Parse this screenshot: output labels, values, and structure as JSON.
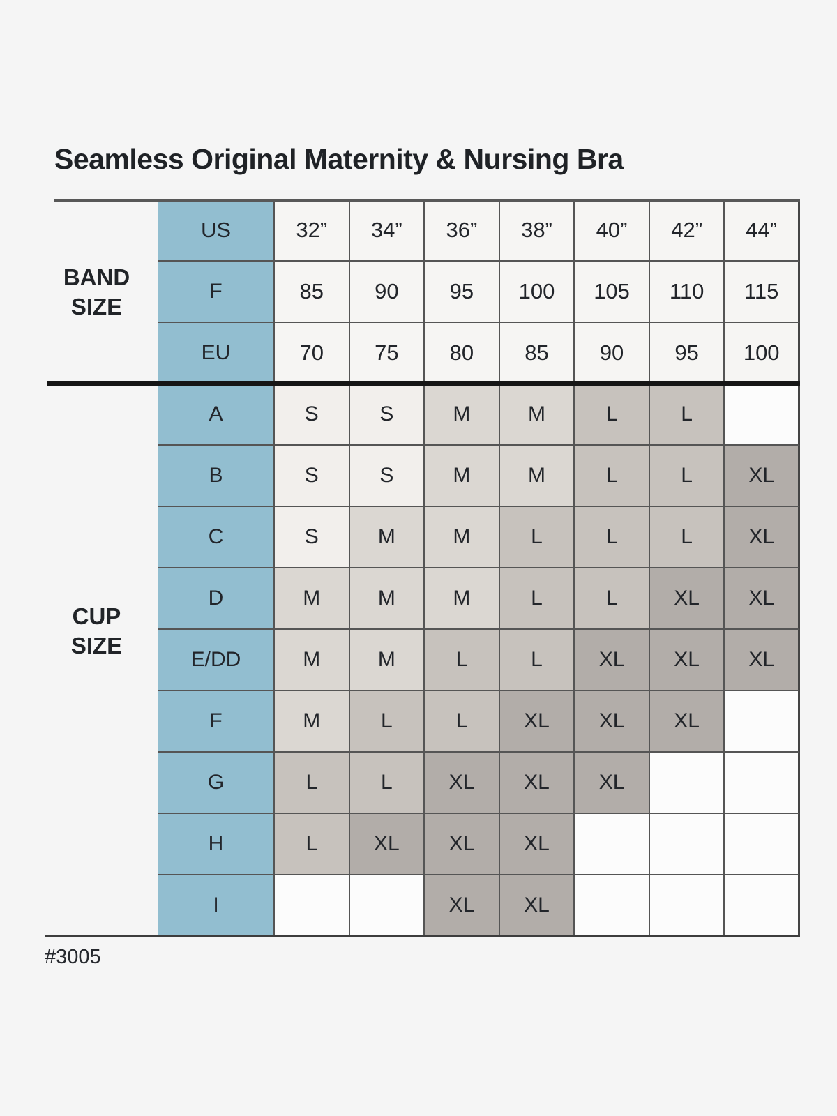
{
  "title": "Seamless Original Maternity & Nursing Bra",
  "product_code": "#3005",
  "table": {
    "band_label_lines": [
      "BAND",
      "SIZE"
    ],
    "cup_label_lines": [
      "CUP",
      "SIZE"
    ],
    "band_rows": [
      {
        "label": "US",
        "values": [
          "32”",
          "34”",
          "36”",
          "38”",
          "40”",
          "42”",
          "44”"
        ]
      },
      {
        "label": "F",
        "values": [
          "85",
          "90",
          "95",
          "100",
          "105",
          "110",
          "115"
        ]
      },
      {
        "label": "EU",
        "values": [
          "70",
          "75",
          "80",
          "85",
          "90",
          "95",
          "100"
        ]
      }
    ],
    "cup_rows": [
      {
        "label": "A",
        "values": [
          "S",
          "S",
          "M",
          "M",
          "L",
          "L",
          ""
        ]
      },
      {
        "label": "B",
        "values": [
          "S",
          "S",
          "M",
          "M",
          "L",
          "L",
          "XL"
        ]
      },
      {
        "label": "C",
        "values": [
          "S",
          "M",
          "M",
          "L",
          "L",
          "L",
          "XL"
        ]
      },
      {
        "label": "D",
        "values": [
          "M",
          "M",
          "M",
          "L",
          "L",
          "XL",
          "XL"
        ]
      },
      {
        "label": "E/DD",
        "values": [
          "M",
          "M",
          "L",
          "L",
          "XL",
          "XL",
          "XL"
        ]
      },
      {
        "label": "F",
        "values": [
          "M",
          "L",
          "L",
          "XL",
          "XL",
          "XL",
          ""
        ]
      },
      {
        "label": "G",
        "values": [
          "L",
          "L",
          "XL",
          "XL",
          "XL",
          "",
          ""
        ]
      },
      {
        "label": "H",
        "values": [
          "L",
          "XL",
          "XL",
          "XL",
          "",
          "",
          ""
        ]
      },
      {
        "label": "I",
        "values": [
          "",
          "",
          "XL",
          "XL",
          "",
          "",
          ""
        ]
      }
    ]
  },
  "colors": {
    "page_bg": "#f5f5f5",
    "teal": "#92bed0",
    "cell_s": "#f2efec",
    "cell_m": "#dbd7d2",
    "cell_l": "#c7c2bd",
    "cell_xl": "#b2ada9",
    "cell_empty": "#fcfcfc",
    "band_cell": "#f6f5f3",
    "grid_line": "#555555",
    "text": "#22252a"
  },
  "chart_data": {
    "type": "table",
    "title": "Seamless Original Maternity & Nursing Bra",
    "columns_by_us_band": [
      "32”",
      "34”",
      "36”",
      "38”",
      "40”",
      "42”",
      "44”"
    ],
    "band_size": {
      "US": [
        "32”",
        "34”",
        "36”",
        "38”",
        "40”",
        "42”",
        "44”"
      ],
      "F": [
        85,
        90,
        95,
        100,
        105,
        110,
        115
      ],
      "EU": [
        70,
        75,
        80,
        85,
        90,
        95,
        100
      ]
    },
    "cup_size_to_garment_size": {
      "A": [
        "S",
        "S",
        "M",
        "M",
        "L",
        "L",
        null
      ],
      "B": [
        "S",
        "S",
        "M",
        "M",
        "L",
        "L",
        "XL"
      ],
      "C": [
        "S",
        "M",
        "M",
        "L",
        "L",
        "L",
        "XL"
      ],
      "D": [
        "M",
        "M",
        "M",
        "L",
        "L",
        "XL",
        "XL"
      ],
      "E/DD": [
        "M",
        "M",
        "L",
        "L",
        "XL",
        "XL",
        "XL"
      ],
      "F": [
        "M",
        "L",
        "L",
        "XL",
        "XL",
        "XL",
        null
      ],
      "G": [
        "L",
        "L",
        "XL",
        "XL",
        "XL",
        null,
        null
      ],
      "H": [
        "L",
        "XL",
        "XL",
        "XL",
        null,
        null,
        null
      ],
      "I": [
        null,
        null,
        "XL",
        "XL",
        null,
        null,
        null
      ]
    },
    "annotations": [
      "#3005"
    ],
    "legend_position": "none",
    "grid": true
  }
}
